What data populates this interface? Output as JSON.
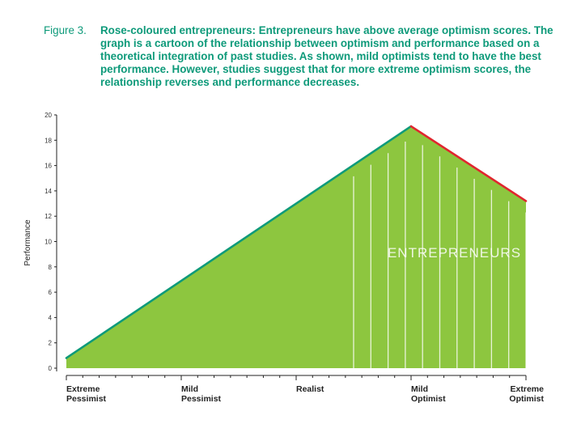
{
  "caption": {
    "number": "Figure 3.",
    "text": "Rose-coloured entrepreneurs: Entrepreneurs have above average optimism scores. The graph is a cartoon of the relationship between optimism and performance based on a theoretical integration of past studies. As shown, mild optimists tend to have the best performance. However, studies suggest that for more extreme optimism scores, the relationship reverses and performance decreases."
  },
  "colors": {
    "caption": "#0e9a7a",
    "area_fill": "#8dc63f",
    "rising_line": "#0e9a7a",
    "falling_line": "#e0262e",
    "annotation": "#ffffff"
  },
  "chart_data": {
    "type": "area",
    "ylabel": "Performance",
    "xlabel": "",
    "ylim": [
      0,
      20
    ],
    "yticks": [
      0,
      2,
      4,
      6,
      8,
      10,
      12,
      14,
      16,
      18,
      20
    ],
    "xlim": [
      0,
      4
    ],
    "x_categories": [
      {
        "line1": "Extreme",
        "line2": "Pessimist",
        "x": 0
      },
      {
        "line1": "Mild",
        "line2": "Pessimist",
        "x": 1
      },
      {
        "line1": "Realist",
        "line2": "",
        "x": 2
      },
      {
        "line1": "Mild",
        "line2": "Optimist",
        "x": 3
      },
      {
        "line1": "Extreme",
        "line2": "Optimist",
        "x": 4
      }
    ],
    "series": [
      {
        "points": [
          [
            0,
            0.8
          ],
          [
            3,
            19.1
          ],
          [
            4,
            13.2
          ]
        ]
      }
    ],
    "annotation": {
      "text": "ENTREPRENEURS",
      "x_range": [
        2.5,
        4
      ]
    }
  }
}
